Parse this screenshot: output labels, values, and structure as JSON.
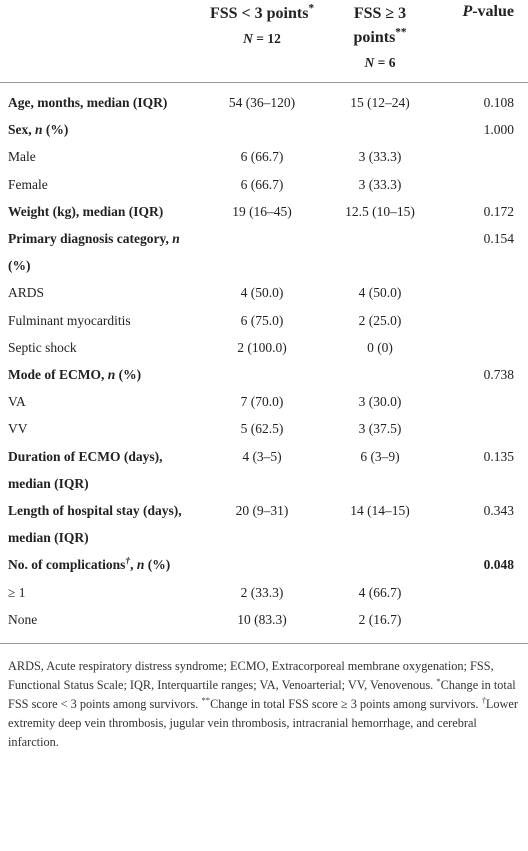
{
  "table": {
    "columns": [
      {
        "title": [
          "FSS < 3 points",
          {
            "text": "*",
            "style": "sup"
          }
        ],
        "n": [
          {
            "text": "N",
            "style": "italic"
          },
          " = 12"
        ]
      },
      {
        "title": [
          "FSS ≥ 3 points",
          {
            "text": "**",
            "style": "sup"
          }
        ],
        "n": [
          {
            "text": "N",
            "style": "italic"
          },
          " = 6"
        ]
      },
      {
        "title": [
          {
            "text": "P",
            "style": "italic"
          },
          "-value"
        ]
      }
    ],
    "rows": [
      {
        "label": "Age, months, median (IQR)",
        "heading": true,
        "cells": [
          "54 (36–120)",
          "15 (12–24)"
        ],
        "p": "0.108"
      },
      {
        "label": [
          "Sex, ",
          {
            "text": "n",
            "style": "italic"
          },
          " (%)"
        ],
        "heading": true,
        "cells": [
          null,
          null
        ],
        "p": "1.000"
      },
      {
        "label": "Male",
        "cells": [
          "6 (66.7)",
          "3 (33.3)"
        ],
        "p": null
      },
      {
        "label": "Female",
        "cells": [
          "6 (66.7)",
          "3 (33.3)"
        ],
        "p": null
      },
      {
        "label": "Weight (kg), median (IQR)",
        "heading": true,
        "cells": [
          "19 (16–45)",
          "12.5 (10–15)"
        ],
        "p": "0.172"
      },
      {
        "label": [
          "Primary diagnosis category, ",
          {
            "text": "n",
            "style": "italic"
          },
          " (%)"
        ],
        "heading": true,
        "cells": [
          null,
          null
        ],
        "p": "0.154"
      },
      {
        "label": "ARDS",
        "cells": [
          "4 (50.0)",
          "4 (50.0)"
        ],
        "p": null
      },
      {
        "label": "Fulminant myocarditis",
        "cells": [
          "6 (75.0)",
          "2 (25.0)"
        ],
        "p": null
      },
      {
        "label": "Septic shock",
        "cells": [
          "2 (100.0)",
          "0 (0)"
        ],
        "p": null
      },
      {
        "label": [
          "Mode of ECMO, ",
          {
            "text": "n",
            "style": "italic"
          },
          " (%)"
        ],
        "heading": true,
        "cells": [
          null,
          null
        ],
        "p": "0.738"
      },
      {
        "label": "VA",
        "cells": [
          "7 (70.0)",
          "3 (30.0)"
        ],
        "p": null
      },
      {
        "label": "VV",
        "cells": [
          "5 (62.5)",
          "3 (37.5)"
        ],
        "p": null
      },
      {
        "label": "Duration of ECMO (days), median (IQR)",
        "heading": true,
        "cells": [
          "4 (3–5)",
          "6 (3–9)"
        ],
        "p": "0.135"
      },
      {
        "label": "Length of hospital stay (days), median (IQR)",
        "heading": true,
        "cells": [
          "20 (9–31)",
          "14 (14–15)"
        ],
        "p": "0.343"
      },
      {
        "label": [
          "No. of complications",
          {
            "text": "†",
            "style": "sup italic"
          },
          ", ",
          {
            "text": "n",
            "style": "italic"
          },
          " (%)"
        ],
        "heading": true,
        "cells": [
          null,
          null
        ],
        "p": [
          {
            "text": "0.048",
            "style": "bold"
          }
        ]
      },
      {
        "label": "≥ 1",
        "cells": [
          "2 (33.3)",
          "4 (66.7)"
        ],
        "p": null
      },
      {
        "label": "None",
        "cells": [
          "10 (83.3)",
          "2 (16.7)"
        ],
        "p": null
      }
    ],
    "footnote": [
      "ARDS, Acute respiratory distress syndrome; ECMO, Extracorporeal membrane oxygenation; FSS, Functional Status Scale; IQR, Interquartile ranges; VA, Venoarterial; VV, Venovenous. ",
      {
        "text": "*",
        "style": "sup"
      },
      "Change in total FSS score < 3 points among survivors. ",
      {
        "text": "**",
        "style": "sup"
      },
      "Change in total FSS score ≥ 3 points among survivors. ",
      {
        "text": "†",
        "style": "sup italic"
      },
      "Lower extremity deep vein thrombosis, jugular vein thrombosis, intracranial hemorrhage, and cerebral infarction."
    ]
  }
}
